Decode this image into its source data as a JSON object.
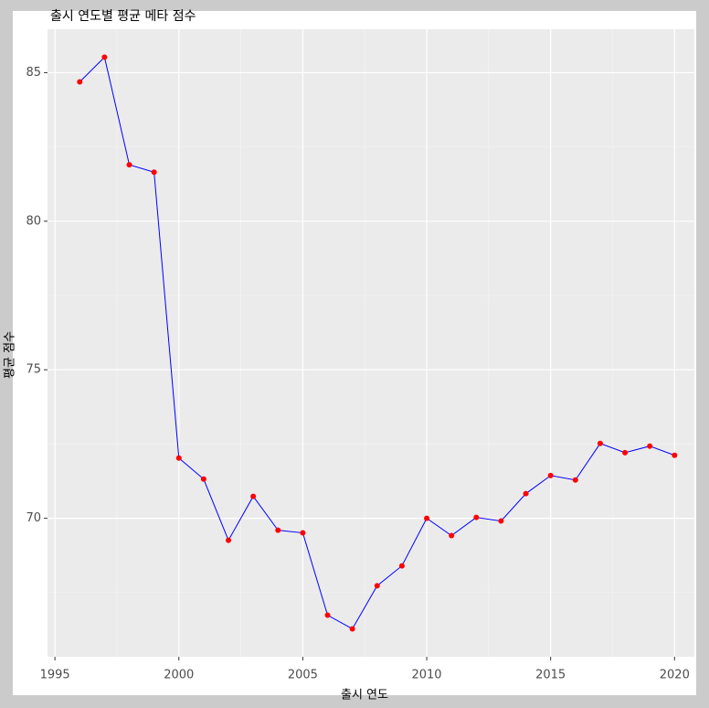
{
  "chart_data": {
    "type": "line",
    "title": "출시 연도별 평균 메타 점수",
    "x_label": "출시 연도",
    "y_label": "평균 점수",
    "x": [
      1996,
      1997,
      1998,
      1999,
      2000,
      2001,
      2002,
      2003,
      2004,
      2005,
      2006,
      2007,
      2008,
      2009,
      2010,
      2011,
      2012,
      2013,
      2014,
      2015,
      2016,
      2017,
      2018,
      2019,
      2020
    ],
    "series": [
      {
        "name": "평균 점수",
        "color": "#0000ff",
        "point_color": "#ff0000",
        "values": [
          84.69,
          85.52,
          81.9,
          81.65,
          72.03,
          71.32,
          69.26,
          70.74,
          69.6,
          69.51,
          66.74,
          66.28,
          67.73,
          68.4,
          70.0,
          69.42,
          70.03,
          69.91,
          70.83,
          71.44,
          71.29,
          72.52,
          72.21,
          72.43,
          72.12
        ]
      }
    ],
    "xlim": [
      1994.7,
      2020.8
    ],
    "ylim": [
      65.34,
      86.46
    ],
    "xticks": [
      1995,
      2000,
      2005,
      2010,
      2015,
      2020
    ],
    "yticks": [
      70,
      75,
      80,
      85
    ],
    "x_minor_ticks": [
      1997.5,
      2002.5,
      2007.5,
      2012.5,
      2017.5
    ],
    "y_minor_ticks": [
      67.5,
      72.5,
      77.5,
      82.5
    ],
    "grid": true
  }
}
